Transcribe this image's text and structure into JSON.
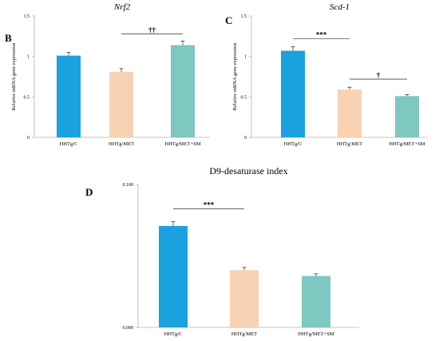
{
  "colors": {
    "c": "#1aa3df",
    "met": "#f9d2b3",
    "met_sm": "#7ec8c1",
    "axis": "#b0b0b0",
    "err": "#000000"
  },
  "chart_data": [
    {
      "panel": "B",
      "type": "bar",
      "title": "Nrf2",
      "title_style": "italic",
      "ylabel": "Relative mRNA gene expression",
      "categories": [
        "HHTg/C",
        "HHTg/MET",
        "HHTg/MET+SM"
      ],
      "values": [
        1.01,
        0.81,
        1.14
      ],
      "errors": [
        0.04,
        0.04,
        0.05
      ],
      "ylim": [
        0,
        1.5
      ],
      "yticks": [
        0,
        0.5,
        1,
        1.5
      ],
      "ytick_labels": [
        "0",
        "0.5",
        "1",
        "1.5"
      ],
      "significance": [
        {
          "from": 1,
          "to": 2,
          "label": "††",
          "y": 1.28
        }
      ]
    },
    {
      "panel": "C",
      "type": "bar",
      "title": "Scd-1",
      "title_style": "italic",
      "ylabel": "Relative mRNA gene expression",
      "categories": [
        "HHTg/C",
        "HHTg/MET",
        "HHTg/MET+SM"
      ],
      "values": [
        1.07,
        0.59,
        0.51
      ],
      "errors": [
        0.05,
        0.03,
        0.02
      ],
      "ylim": [
        0,
        1.5
      ],
      "yticks": [
        0,
        0.5,
        1,
        1.5
      ],
      "ytick_labels": [
        "0",
        "0.5",
        "1",
        "1.5"
      ],
      "significance": [
        {
          "from": 0,
          "to": 1,
          "label": "***",
          "y": 1.22
        },
        {
          "from": 1,
          "to": 2,
          "label": "†",
          "y": 0.72
        }
      ]
    },
    {
      "panel": "D",
      "type": "bar",
      "title": "D9-desaturase index",
      "title_style": "normal",
      "ylabel": "",
      "categories": [
        "HHTg/C",
        "HHTg/MET",
        "HHTg/MET+SM"
      ],
      "values": [
        0.071,
        0.04,
        0.036
      ],
      "errors": [
        0.003,
        0.002,
        0.0015
      ],
      "ylim": [
        0,
        0.1
      ],
      "yticks": [
        0,
        0.1
      ],
      "ytick_labels": [
        "0.000",
        "0.100"
      ],
      "significance": [
        {
          "from": 0,
          "to": 1,
          "label": "***",
          "y": 0.083
        }
      ]
    }
  ]
}
